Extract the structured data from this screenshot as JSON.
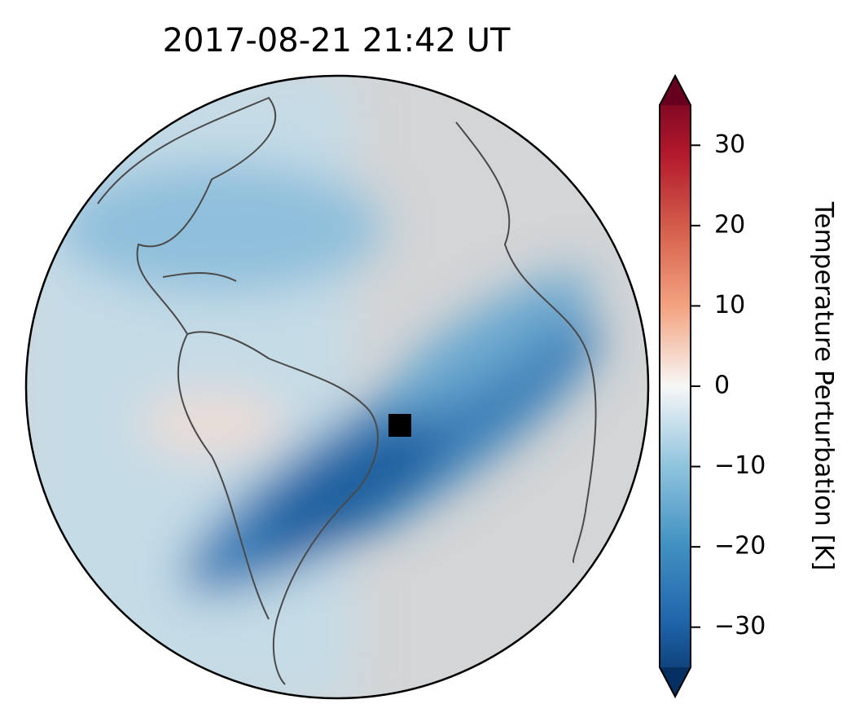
{
  "chart_data": {
    "type": "map",
    "title": "2017-08-21  21:42 UT",
    "colorbar": {
      "label": "Temperature Perturbation [K]",
      "lim": [
        -35,
        35
      ],
      "ticks": [
        {
          "value": -30,
          "label": "−30"
        },
        {
          "value": -20,
          "label": "−20"
        },
        {
          "value": -10,
          "label": "−10"
        },
        0,
        10,
        20,
        30
      ]
    }
  }
}
